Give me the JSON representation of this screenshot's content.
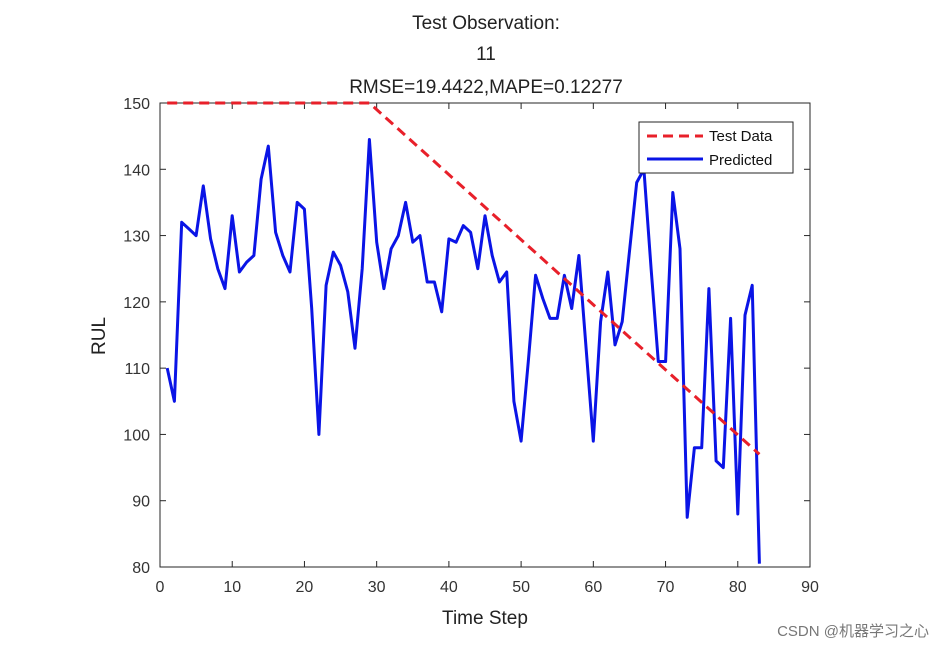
{
  "chart_data": {
    "type": "line",
    "title_lines": [
      "Test Observation:",
      "11",
      "RMSE=19.4422,MAPE=0.12277"
    ],
    "xlabel": "Time Step",
    "ylabel": "RUL",
    "xlim": [
      0,
      90
    ],
    "ylim": [
      80,
      150
    ],
    "xticks": [
      0,
      10,
      20,
      30,
      40,
      50,
      60,
      70,
      80,
      90
    ],
    "yticks": [
      80,
      90,
      100,
      110,
      120,
      130,
      140,
      150
    ],
    "grid": false,
    "legend_position": "top-right",
    "series": [
      {
        "name": "Test Data",
        "color": "#e8202a",
        "style": "dashed",
        "x": [
          1,
          29,
          83
        ],
        "y": [
          150,
          150,
          97
        ]
      },
      {
        "name": "Predicted",
        "color": "#0a14e6",
        "style": "solid",
        "x": [
          1,
          2,
          3,
          4,
          5,
          6,
          7,
          8,
          9,
          10,
          11,
          12,
          13,
          14,
          15,
          16,
          17,
          18,
          19,
          20,
          21,
          22,
          23,
          24,
          25,
          26,
          27,
          28,
          29,
          30,
          31,
          32,
          33,
          34,
          35,
          36,
          37,
          38,
          39,
          40,
          41,
          42,
          43,
          44,
          45,
          46,
          47,
          48,
          49,
          50,
          51,
          52,
          53,
          54,
          55,
          56,
          57,
          58,
          59,
          60,
          61,
          62,
          63,
          64,
          65,
          66,
          67,
          68,
          69,
          70,
          71,
          72,
          73,
          74,
          75,
          76,
          77,
          78,
          79,
          80,
          81,
          82,
          83
        ],
        "y": [
          110,
          105,
          132,
          131,
          130,
          137.5,
          129.5,
          125,
          122,
          133,
          124.5,
          126,
          127,
          138.5,
          143.5,
          130.5,
          127,
          124.5,
          135,
          134,
          119,
          100,
          122.5,
          127.5,
          125.5,
          121.5,
          113,
          125,
          144.5,
          129,
          122,
          128,
          130,
          135,
          129,
          130,
          123,
          123,
          118.5,
          129.5,
          129,
          131.5,
          130.5,
          125,
          133,
          127,
          123,
          124.5,
          105,
          99,
          111,
          124,
          120.5,
          117.5,
          117.5,
          124,
          119,
          127,
          113,
          99,
          117,
          124.5,
          113.5,
          117,
          127.5,
          138,
          140,
          125,
          111,
          111,
          136.5,
          128,
          87.5,
          98,
          98,
          122,
          96,
          95,
          117.5,
          88,
          118,
          122.5,
          80.5
        ]
      }
    ]
  },
  "watermark": "CSDN @机器学习之心"
}
